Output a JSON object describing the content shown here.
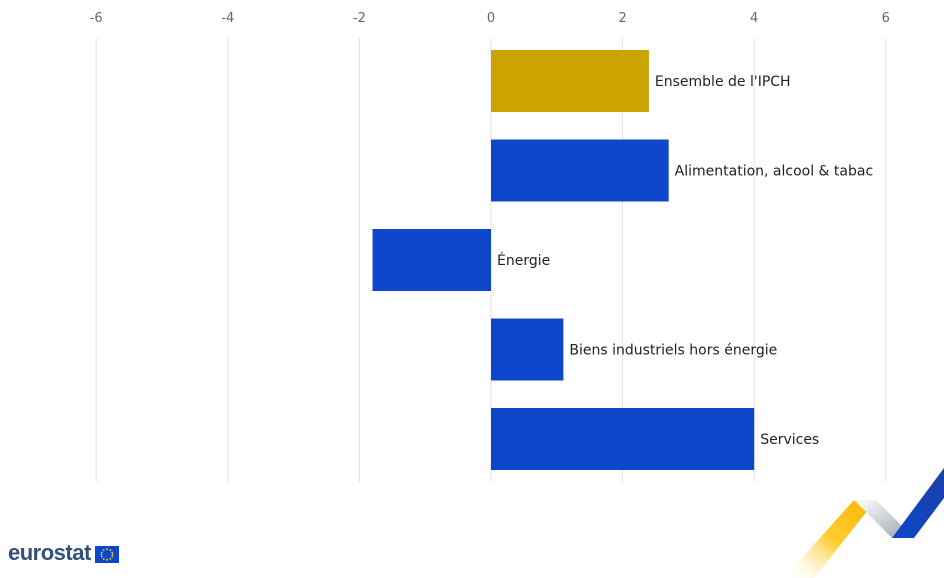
{
  "chart_data": {
    "type": "bar",
    "orientation": "horizontal",
    "categories": [
      "Ensemble de l'IPCH",
      "Alimentation, alcool & tabac",
      "Énergie",
      "Biens industriels hors énergie",
      "Services"
    ],
    "values": [
      2.4,
      2.7,
      -1.8,
      1.1,
      4.0
    ],
    "colors": [
      "#cca300",
      "#0e47cb",
      "#0e47cb",
      "#0e47cb",
      "#0e47cb"
    ],
    "xlim": [
      -6,
      6
    ],
    "xticks": [
      "-6",
      "-4",
      "-2",
      "0",
      "2",
      "4",
      "6"
    ],
    "x_axis_position": "top",
    "grid": true,
    "legend": "none",
    "title": "",
    "xlabel": "",
    "ylabel": ""
  },
  "branding": {
    "logo_text": "eurostat",
    "flag_icon": "eu-flag-icon",
    "decoration": "eurostat-chevron-decoration"
  }
}
